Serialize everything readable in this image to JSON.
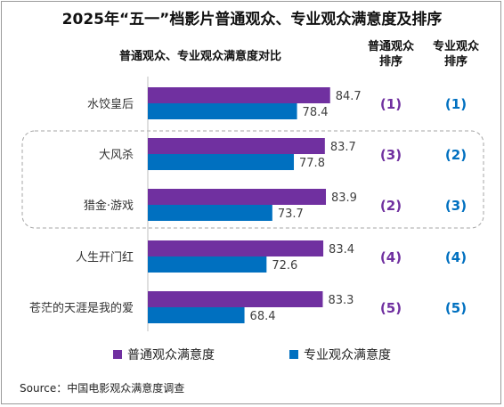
{
  "title": "2025年“五一”档影片普通观众、专业观众满意度及排序",
  "subtitle": "普通观众、专业观众满意度对比",
  "column_headers": {
    "general_rank": [
      "普通观众",
      "排序"
    ],
    "pro_rank": [
      "专业观众",
      "排序"
    ]
  },
  "legend": {
    "general": "普通观众满意度",
    "pro": "专业观众满意度"
  },
  "source": "Source：中国电影观众满意度调查",
  "colors": {
    "general": "#7030a0",
    "pro": "#0070c0"
  },
  "chart_data": {
    "type": "bar",
    "orientation": "horizontal",
    "categories": [
      "水饺皇后",
      "大风杀",
      "猎金·游戏",
      "人生开门红",
      "苍茫的天涯是我的爱"
    ],
    "series": [
      {
        "name": "普通观众满意度",
        "values": [
          84.7,
          83.7,
          83.9,
          83.4,
          83.3
        ]
      },
      {
        "name": "专业观众满意度",
        "values": [
          78.4,
          77.8,
          73.7,
          72.6,
          68.4
        ]
      }
    ],
    "ranks": {
      "general": [
        "(1)",
        "(3)",
        "(2)",
        "(4)",
        "(5)"
      ],
      "pro": [
        "(1)",
        "(2)",
        "(3)",
        "(4)",
        "(5)"
      ]
    },
    "highlight_group": [
      "大风杀",
      "猎金·游戏"
    ],
    "xlim": [
      50,
      90
    ],
    "legend_position": "bottom"
  }
}
